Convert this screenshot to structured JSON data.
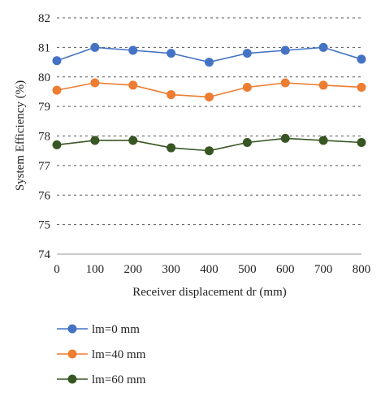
{
  "chart_data": {
    "type": "line",
    "title": "",
    "xlabel": "Receiver displacement dr (mm)",
    "ylabel": "System Efficiency (%)",
    "x": [
      0,
      100,
      200,
      300,
      400,
      500,
      600,
      700,
      800
    ],
    "xlim": [
      0,
      800
    ],
    "ylim": [
      74,
      82
    ],
    "x_ticks": [
      "0",
      "100",
      "200",
      "300",
      "400",
      "500",
      "600",
      "700",
      "800"
    ],
    "y_ticks": [
      "74",
      "75",
      "76",
      "77",
      "78",
      "79",
      "80",
      "81",
      "82"
    ],
    "grid": "horizontal dashed",
    "legend_position": "bottom",
    "series": [
      {
        "name": "lm=0 mm",
        "color": "#4472C4",
        "values": [
          80.55,
          81.0,
          80.9,
          80.8,
          80.5,
          80.8,
          80.9,
          81.0,
          80.6
        ]
      },
      {
        "name": "lm=40 mm",
        "color": "#ED7D31",
        "values": [
          79.55,
          79.8,
          79.72,
          79.4,
          79.32,
          79.65,
          79.8,
          79.72,
          79.65
        ]
      },
      {
        "name": "lm=60 mm",
        "color": "#375623",
        "values": [
          77.7,
          77.85,
          77.85,
          77.6,
          77.5,
          77.78,
          77.92,
          77.85,
          77.78
        ]
      }
    ]
  }
}
